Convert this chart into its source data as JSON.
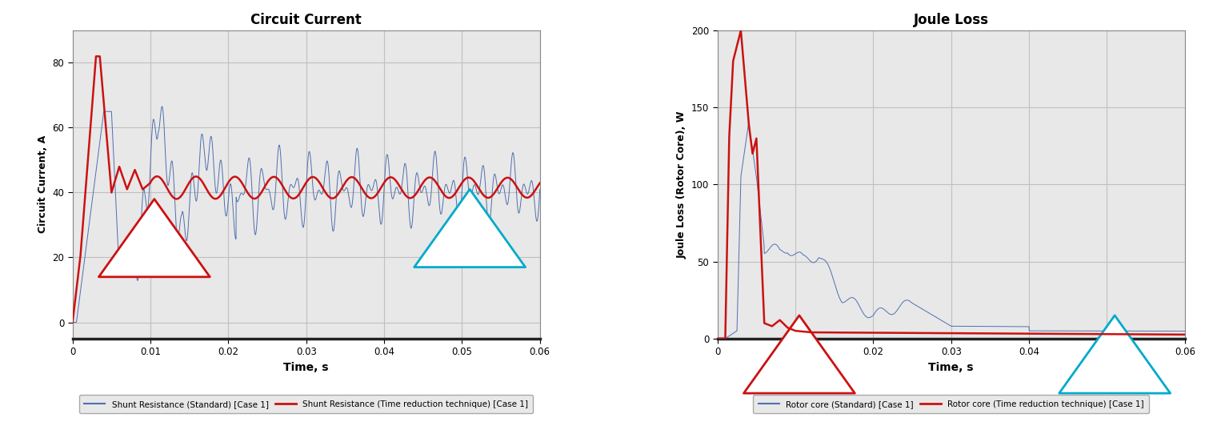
{
  "fig_width": 15.11,
  "fig_height": 5.42,
  "dpi": 100,
  "bg_color": "#ffffff",
  "plot_bg_color": "#e8e8e8",
  "grid_color": "#ffffff",
  "left_title": "Circuit Current",
  "left_ylabel": "Circuit Current, A",
  "left_xlabel": "Time, s",
  "left_xlim": [
    0,
    0.06
  ],
  "left_ylim": [
    -5,
    90
  ],
  "left_yticks": [
    0,
    20,
    40,
    60,
    80
  ],
  "left_xticks": [
    0,
    0.01,
    0.02,
    0.03,
    0.04,
    0.05,
    0.06
  ],
  "right_title": "Joule Loss",
  "right_ylabel": "Joule Loss (Rotor Core), W",
  "right_xlabel": "Time, s",
  "right_xlim": [
    0,
    0.06
  ],
  "right_ylim": [
    0,
    200
  ],
  "right_yticks": [
    0,
    50,
    100,
    150,
    200
  ],
  "right_xticks": [
    0,
    0.01,
    0.02,
    0.03,
    0.04,
    0.05,
    0.06
  ],
  "blue_color": "#4f6faf",
  "red_color": "#cc1111",
  "arrow_red_color": "#cc1111",
  "arrow_cyan_color": "#00aacc",
  "legend_left_blue": "Shunt Resistance (Standard) [Case 1]",
  "legend_left_red": "Shunt Resistance (Time reduction technique) [Case 1]",
  "legend_right_blue": "Rotor core (Standard) [Case 1]",
  "legend_right_red": "Rotor core (Time reduction technique) [Case 1]"
}
